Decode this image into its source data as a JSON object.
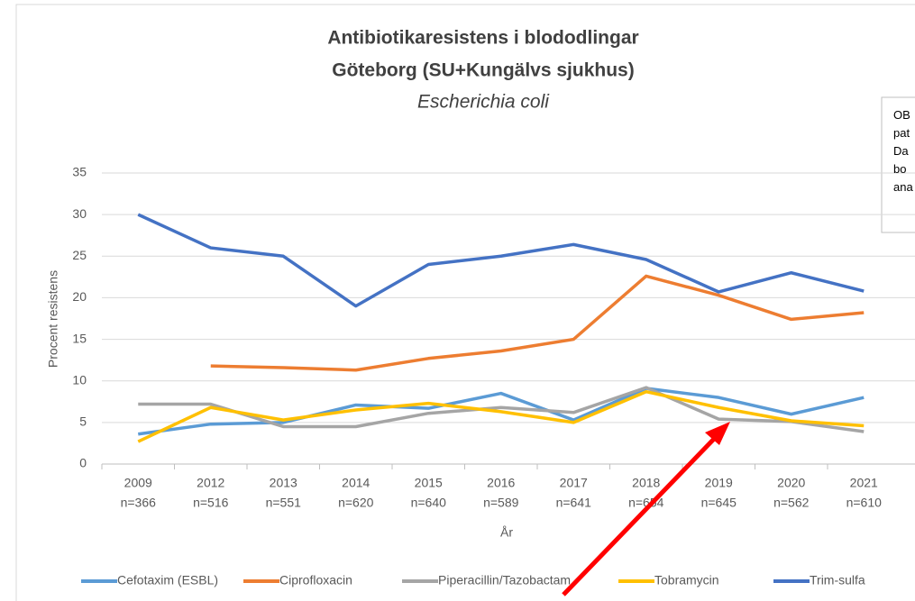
{
  "chart_data": {
    "type": "line",
    "title": "Antibiotikaresistens i blododlingar",
    "subtitle": "Göteborg (SU+Kungälvs sjukhus)",
    "organism": "Escherichia coli",
    "y_label": "Procent resistens",
    "x_label": "År",
    "categories": [
      "2009",
      "2012",
      "2013",
      "2014",
      "2015",
      "2016",
      "2017",
      "2018",
      "2019",
      "2020",
      "2021"
    ],
    "sample_sizes": [
      "n=366",
      "n=516",
      "n=551",
      "n=620",
      "n=640",
      "n=589",
      "n=641",
      "n=654",
      "n=645",
      "n=562",
      "n=610"
    ],
    "series": [
      {
        "name": "Cefotaxim (ESBL)",
        "color": "#5b9bd5",
        "values": [
          3.6,
          4.8,
          5.0,
          7.1,
          6.7,
          8.5,
          5.3,
          9.1,
          8.0,
          6.0,
          8.0
        ]
      },
      {
        "name": "Ciprofloxacin",
        "color": "#ed7d31",
        "values": [
          null,
          11.8,
          11.6,
          11.3,
          12.7,
          13.6,
          15.0,
          22.6,
          20.3,
          17.4,
          18.2
        ]
      },
      {
        "name": "Piperacillin/Tazobactam",
        "color": "#a5a5a5",
        "values": [
          7.2,
          7.2,
          4.5,
          4.5,
          6.1,
          6.8,
          6.2,
          9.2,
          5.4,
          5.1,
          3.9
        ]
      },
      {
        "name": "Tobramycin",
        "color": "#ffc000",
        "values": [
          2.7,
          6.8,
          5.3,
          6.5,
          7.3,
          6.3,
          5.0,
          8.7,
          6.8,
          5.2,
          4.6
        ]
      },
      {
        "name": "Trim-sulfa",
        "color": "#4472c4",
        "values": [
          30,
          26,
          25,
          19,
          24,
          25,
          26.4,
          24.6,
          20.7,
          23,
          20.8
        ]
      }
    ],
    "ylim": [
      0,
      35
    ],
    "yticks": [
      0,
      5,
      10,
      15,
      20,
      25,
      30,
      35
    ],
    "grid": true,
    "legend": "bottom",
    "note_fragments": [
      "OB",
      "pat",
      "Da",
      "bo",
      "ana"
    ]
  }
}
